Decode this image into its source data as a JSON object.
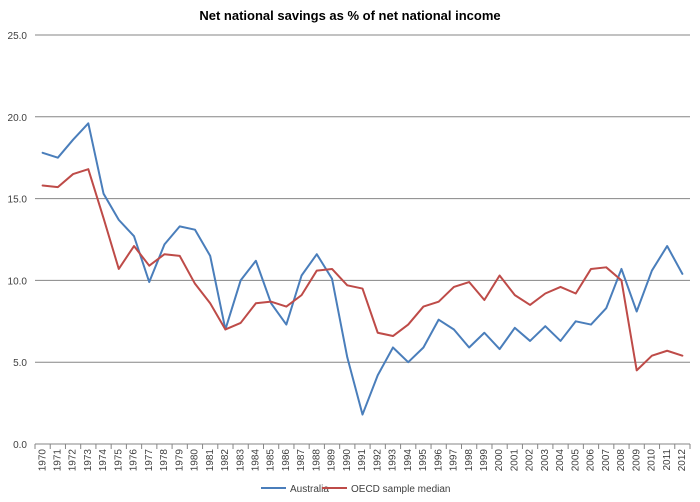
{
  "chart_data": {
    "type": "line",
    "title": "Net national savings as % of net national income",
    "xlabel": "",
    "ylabel": "",
    "ylim": [
      0,
      25
    ],
    "yticks": [
      0,
      5,
      10,
      15,
      20,
      25
    ],
    "ytick_labels": [
      "0.0",
      "5.0",
      "10.0",
      "15.0",
      "20.0",
      "25.0"
    ],
    "grid": true,
    "legend_position": "bottom",
    "x": [
      "1970",
      "1971",
      "1972",
      "1973",
      "1974",
      "1975",
      "1976",
      "1977",
      "1978",
      "1979",
      "1980",
      "1981",
      "1982",
      "1983",
      "1984",
      "1985",
      "1986",
      "1987",
      "1988",
      "1989",
      "1990",
      "1991",
      "1992",
      "1993",
      "1994",
      "1995",
      "1996",
      "1997",
      "1998",
      "1999",
      "2000",
      "2001",
      "2002",
      "2003",
      "2004",
      "2005",
      "2006",
      "2007",
      "2008",
      "2009",
      "2010",
      "2011",
      "2012"
    ],
    "series": [
      {
        "name": "Australia",
        "color": "#4a7ebb",
        "values": [
          17.8,
          17.5,
          18.6,
          19.6,
          15.3,
          13.7,
          12.7,
          9.9,
          12.2,
          13.3,
          13.1,
          11.5,
          7.0,
          10.0,
          11.2,
          8.6,
          7.3,
          10.3,
          11.6,
          10.1,
          5.3,
          1.8,
          4.2,
          5.9,
          5.0,
          5.9,
          7.6,
          7.0,
          5.9,
          6.8,
          5.8,
          7.1,
          6.3,
          7.2,
          6.3,
          7.5,
          7.3,
          8.3,
          10.7,
          8.1,
          10.6,
          12.1,
          10.4
        ]
      },
      {
        "name": "OECD sample median",
        "color": "#be4b48",
        "values": [
          15.8,
          15.7,
          16.5,
          16.8,
          13.8,
          10.7,
          12.1,
          10.9,
          11.6,
          11.5,
          9.8,
          8.6,
          7.0,
          7.4,
          8.6,
          8.7,
          8.4,
          9.1,
          10.6,
          10.7,
          9.7,
          9.5,
          6.8,
          6.6,
          7.3,
          8.4,
          8.7,
          9.6,
          9.9,
          8.8,
          10.3,
          9.1,
          8.5,
          9.2,
          9.6,
          9.2,
          10.7,
          10.8,
          10.0,
          4.5,
          5.4,
          5.7,
          5.4
        ]
      }
    ]
  }
}
